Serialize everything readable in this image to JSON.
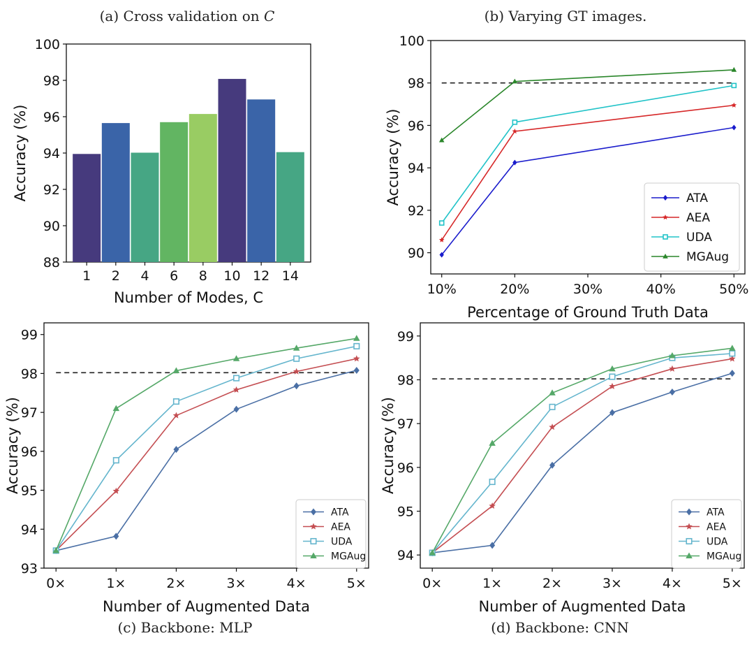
{
  "chart_data": [
    {
      "id": "a",
      "type": "bar",
      "caption": "(a) Cross validation on ",
      "caption_var": "C",
      "categories": [
        "1",
        "2",
        "4",
        "6",
        "8",
        "10",
        "12",
        "14"
      ],
      "values": [
        93.95,
        95.65,
        94.02,
        95.7,
        96.15,
        98.08,
        96.95,
        94.05
      ],
      "colors": [
        "#463a7d",
        "#3a64a8",
        "#46a684",
        "#62b562",
        "#99cc63",
        "#463a7d",
        "#3a64a8",
        "#46a684"
      ],
      "xlabel": "Number of Modes, C",
      "ylabel": "Accuracy (%)",
      "ylim": [
        88,
        100
      ],
      "yticks": [
        "88",
        "90",
        "92",
        "94",
        "96",
        "98",
        "100"
      ],
      "grid": false
    },
    {
      "id": "b",
      "type": "line",
      "caption": "(b) Varying GT images.",
      "x_labels": [
        "10%",
        "20%",
        "30%",
        "40%",
        "50%"
      ],
      "x": [
        10,
        20,
        50
      ],
      "xlim": [
        8.5,
        51.5
      ],
      "xticks": [
        10,
        20,
        30,
        40,
        50
      ],
      "xlabel": "Percentage of Ground Truth Data",
      "ylabel": "Accuracy (%)",
      "ylim": [
        89,
        100
      ],
      "yticks": [
        "90",
        "92",
        "94",
        "96",
        "98",
        "100"
      ],
      "reference_line": 98.0,
      "legend_position": "lower-right",
      "series": [
        {
          "name": "ATA",
          "color": "#1a1ccc",
          "marker": "diamond",
          "values": [
            89.9,
            94.25,
            95.9
          ]
        },
        {
          "name": "AEA",
          "color": "#d62728",
          "marker": "star",
          "values": [
            90.6,
            95.72,
            96.95
          ]
        },
        {
          "name": "UDA",
          "color": "#21c3c8",
          "marker": "square",
          "values": [
            91.4,
            96.15,
            97.88
          ]
        },
        {
          "name": "MGAug",
          "color": "#2a862a",
          "marker": "triangle",
          "values": [
            95.3,
            98.07,
            98.62
          ]
        }
      ]
    },
    {
      "id": "c",
      "type": "line",
      "caption": "(c) Backbone: MLP",
      "x_labels": [
        "0×",
        "1×",
        "2×",
        "3×",
        "4×",
        "5×"
      ],
      "x": [
        0,
        1,
        2,
        3,
        4,
        5
      ],
      "xlim": [
        -0.2,
        5.2
      ],
      "xlabel": "Number of Augmented Data",
      "ylabel": "Accuracy (%)",
      "ylim": [
        93,
        99.3
      ],
      "yticks": [
        "93",
        "94",
        "95",
        "96",
        "97",
        "98",
        "99"
      ],
      "reference_line": 98.02,
      "legend_position": "lower-right",
      "series": [
        {
          "name": "ATA",
          "color": "#4a6fa5",
          "marker": "diamond",
          "values": [
            93.45,
            93.82,
            96.05,
            97.08,
            97.68,
            98.08
          ]
        },
        {
          "name": "AEA",
          "color": "#c44e52",
          "marker": "star",
          "values": [
            93.45,
            94.98,
            96.92,
            97.58,
            98.05,
            98.38
          ]
        },
        {
          "name": "UDA",
          "color": "#64b5cd",
          "marker": "square",
          "values": [
            93.45,
            95.77,
            97.28,
            97.88,
            98.38,
            98.7
          ]
        },
        {
          "name": "MGAug",
          "color": "#55a868",
          "marker": "triangle",
          "values": [
            93.45,
            97.1,
            98.07,
            98.38,
            98.65,
            98.9
          ]
        }
      ]
    },
    {
      "id": "d",
      "type": "line",
      "caption": "(d) Backbone: CNN",
      "x_labels": [
        "0×",
        "1×",
        "2×",
        "3×",
        "4×",
        "5×"
      ],
      "x": [
        0,
        1,
        2,
        3,
        4,
        5
      ],
      "xlim": [
        -0.2,
        5.2
      ],
      "xlabel": "Number of Augmented Data",
      "ylabel": "Accuracy (%)",
      "ylim": [
        93.7,
        99.3
      ],
      "yticks": [
        "94",
        "95",
        "96",
        "97",
        "98",
        "99"
      ],
      "reference_line": 98.02,
      "legend_position": "lower-right",
      "series": [
        {
          "name": "ATA",
          "color": "#4a6fa5",
          "marker": "diamond",
          "values": [
            94.05,
            94.22,
            96.05,
            97.25,
            97.72,
            98.15
          ]
        },
        {
          "name": "AEA",
          "color": "#c44e52",
          "marker": "star",
          "values": [
            94.05,
            95.12,
            96.92,
            97.85,
            98.25,
            98.48
          ]
        },
        {
          "name": "UDA",
          "color": "#64b5cd",
          "marker": "square",
          "values": [
            94.05,
            95.67,
            97.38,
            98.07,
            98.5,
            98.6
          ]
        },
        {
          "name": "MGAug",
          "color": "#55a868",
          "marker": "triangle",
          "values": [
            94.05,
            96.55,
            97.7,
            98.25,
            98.55,
            98.72
          ]
        }
      ]
    }
  ]
}
